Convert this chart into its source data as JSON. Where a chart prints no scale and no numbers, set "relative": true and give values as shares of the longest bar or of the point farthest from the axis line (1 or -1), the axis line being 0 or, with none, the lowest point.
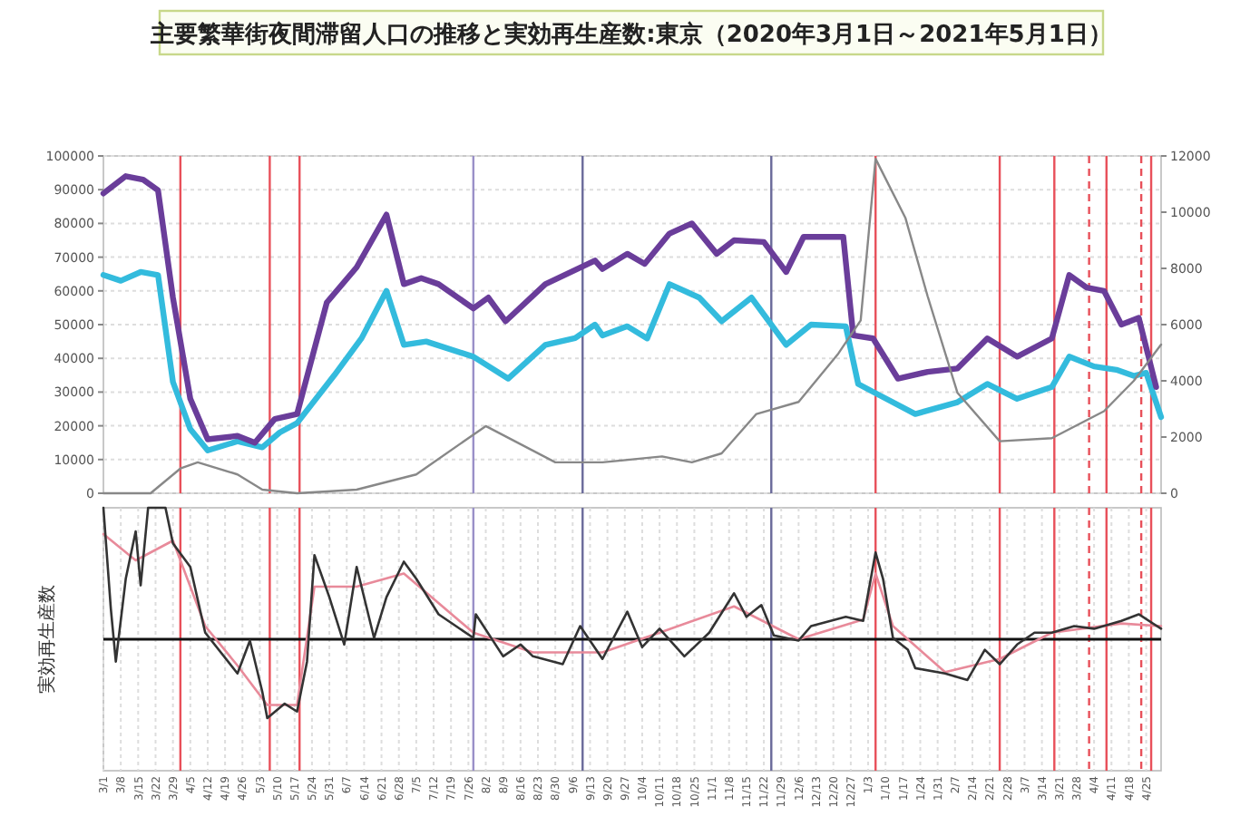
{
  "chart_data": [
    {
      "type": "line",
      "title": "主要繁華街夜間滞留人口の推移と実効再生産数:東京（2020年3月1日～2021年5月1日）",
      "xlim": [
        "2020-03-01",
        "2021-05-01"
      ],
      "ylim": [
        0,
        100000
      ],
      "yticks": [
        0,
        10000,
        20000,
        30000,
        40000,
        50000,
        60000,
        70000,
        80000,
        90000,
        100000
      ],
      "y2lim": [
        0,
        12000
      ],
      "y2ticks": [
        0,
        2000,
        4000,
        6000,
        8000,
        10000,
        12000
      ],
      "grid": "y",
      "tick_labels": "y",
      "series": [
        {
          "color": "#33bbdd",
          "x": [
            "2020-03-01",
            "2020-03-08",
            "2020-03-16",
            "2020-03-23",
            "2020-03-29",
            "2020-04-05",
            "2020-04-12",
            "2020-04-24",
            "2020-05-04",
            "2020-05-11",
            "2020-05-18",
            "2020-06-02",
            "2020-06-13",
            "2020-06-23",
            "2020-06-30",
            "2020-07-09",
            "2020-07-28",
            "2020-08-11",
            "2020-08-26",
            "2020-09-07",
            "2020-09-15",
            "2020-09-18",
            "2020-09-28",
            "2020-10-06",
            "2020-10-15",
            "2020-10-27",
            "2020-11-05",
            "2020-11-17",
            "2020-12-01",
            "2020-12-11",
            "2020-12-25",
            "2020-12-30",
            "2021-01-08",
            "2021-01-22",
            "2021-02-08",
            "2021-02-20",
            "2021-03-04",
            "2021-03-18",
            "2021-03-25",
            "2021-04-04",
            "2021-04-13",
            "2021-04-20",
            "2021-04-25",
            "2021-05-01"
          ],
          "values": [
            64700,
            63000,
            65600,
            64700,
            33000,
            19000,
            12700,
            15400,
            13600,
            18000,
            20800,
            35000,
            46000,
            60000,
            44000,
            45000,
            40500,
            34000,
            44000,
            46000,
            50000,
            46800,
            49500,
            45900,
            62000,
            58000,
            51000,
            58000,
            44000,
            50000,
            49500,
            32400,
            28900,
            23500,
            27000,
            32400,
            28000,
            31500,
            40500,
            37600,
            36600,
            34800,
            35700,
            22600
          ]
        },
        {
          "color": "#6a3d9a",
          "x": [
            "2020-03-01",
            "2020-03-10",
            "2020-03-17",
            "2020-03-23",
            "2020-03-29",
            "2020-04-05",
            "2020-04-12",
            "2020-04-24",
            "2020-05-01",
            "2020-05-09",
            "2020-05-18",
            "2020-05-30",
            "2020-06-11",
            "2020-06-23",
            "2020-06-30",
            "2020-07-07",
            "2020-07-14",
            "2020-07-28",
            "2020-08-03",
            "2020-08-10",
            "2020-08-26",
            "2020-09-15",
            "2020-09-18",
            "2020-09-28",
            "2020-10-05",
            "2020-10-15",
            "2020-10-24",
            "2020-11-03",
            "2020-11-10",
            "2020-11-22",
            "2020-12-01",
            "2020-12-08",
            "2020-12-24",
            "2020-12-28",
            "2021-01-05",
            "2021-01-15",
            "2021-01-27",
            "2021-02-08",
            "2021-02-20",
            "2021-03-04",
            "2021-03-18",
            "2021-03-25",
            "2021-04-01",
            "2021-04-08",
            "2021-04-15",
            "2021-04-22",
            "2021-04-29"
          ],
          "values": [
            88900,
            94000,
            93000,
            89800,
            58000,
            28000,
            16000,
            17000,
            15000,
            22000,
            23500,
            56600,
            67000,
            82600,
            62000,
            63800,
            62000,
            54800,
            58000,
            51000,
            62000,
            69000,
            66500,
            71000,
            68000,
            77000,
            80000,
            71000,
            75000,
            74500,
            65600,
            76000,
            76000,
            46800,
            45900,
            34000,
            36000,
            37000,
            45900,
            40500,
            45900,
            64700,
            61000,
            60000,
            50000,
            52000,
            31500
          ]
        },
        {
          "color": "#888888",
          "axis": "y2",
          "x": [
            "2020-03-01",
            "2020-03-20",
            "2020-04-01",
            "2020-04-08",
            "2020-04-24",
            "2020-05-04",
            "2020-05-18",
            "2020-06-11",
            "2020-07-05",
            "2020-08-02",
            "2020-08-30",
            "2020-09-18",
            "2020-10-12",
            "2020-10-24",
            "2020-11-05",
            "2020-11-19",
            "2020-12-06",
            "2020-12-22",
            "2020-12-31",
            "2021-01-06",
            "2021-01-18",
            "2021-01-27",
            "2021-02-08",
            "2021-02-25",
            "2021-03-18",
            "2021-04-08",
            "2021-04-20",
            "2021-05-01"
          ],
          "values": [
            0,
            0,
            880,
            1100,
            670,
            130,
            0,
            130,
            670,
            2390,
            1100,
            1100,
            1310,
            1100,
            1420,
            2820,
            3250,
            4970,
            6150,
            11900,
            9800,
            7000,
            3570,
            1850,
            1960,
            2920,
            4000,
            5290
          ]
        }
      ],
      "ref_lines": [
        {
          "axis": "x",
          "value": "2020-04-01",
          "color": "#e8505a"
        },
        {
          "axis": "x",
          "value": "2020-05-07",
          "color": "#e8505a"
        },
        {
          "axis": "x",
          "value": "2020-05-19",
          "color": "#e8505a"
        },
        {
          "axis": "x",
          "value": "2020-07-28",
          "color": "#9a90c8"
        },
        {
          "axis": "x",
          "value": "2020-09-10",
          "color": "#6a6a9a"
        },
        {
          "axis": "x",
          "value": "2020-11-25",
          "color": "#6a6a9a"
        },
        {
          "axis": "x",
          "value": "2021-01-06",
          "color": "#e8505a"
        },
        {
          "axis": "x",
          "value": "2021-02-25",
          "color": "#e8505a"
        },
        {
          "axis": "x",
          "value": "2021-03-19",
          "color": "#e8505a"
        },
        {
          "axis": "x",
          "value": "2021-04-02",
          "color": "#e8505a",
          "line_style": "dashed"
        },
        {
          "axis": "x",
          "value": "2021-04-09",
          "color": "#e8505a"
        },
        {
          "axis": "x",
          "value": "2021-04-23",
          "color": "#e8505a",
          "line_style": "dashed"
        },
        {
          "axis": "x",
          "value": "2021-04-27",
          "color": "#e8505a"
        }
      ]
    },
    {
      "type": "line",
      "ylabel": "実効再生産数",
      "relative": true,
      "xlim": [
        "2020-03-01",
        "2021-05-01"
      ],
      "tick_labels": "x",
      "grid": "x",
      "xticks": [
        {
          "value": "2020-03-01",
          "label": "3/1"
        },
        {
          "value": "2020-03-08",
          "label": "3/8"
        },
        {
          "value": "2020-03-15",
          "label": "3/15"
        },
        {
          "value": "2020-03-22",
          "label": "3/22"
        },
        {
          "value": "2020-03-29",
          "label": "3/29"
        },
        {
          "value": "2020-04-05",
          "label": "4/5"
        },
        {
          "value": "2020-04-12",
          "label": "4/12"
        },
        {
          "value": "2020-04-19",
          "label": "4/19"
        },
        {
          "value": "2020-04-26",
          "label": "4/26"
        },
        {
          "value": "2020-05-03",
          "label": "5/3"
        },
        {
          "value": "2020-05-10",
          "label": "5/10"
        },
        {
          "value": "2020-05-17",
          "label": "5/17"
        },
        {
          "value": "2020-05-24",
          "label": "5/24"
        },
        {
          "value": "2020-05-31",
          "label": "5/31"
        },
        {
          "value": "2020-06-07",
          "label": "6/7"
        },
        {
          "value": "2020-06-14",
          "label": "6/14"
        },
        {
          "value": "2020-06-21",
          "label": "6/21"
        },
        {
          "value": "2020-06-28",
          "label": "6/28"
        },
        {
          "value": "2020-07-05",
          "label": "7/5"
        },
        {
          "value": "2020-07-12",
          "label": "7/12"
        },
        {
          "value": "2020-07-19",
          "label": "7/19"
        },
        {
          "value": "2020-07-26",
          "label": "7/26"
        },
        {
          "value": "2020-08-02",
          "label": "8/2"
        },
        {
          "value": "2020-08-09",
          "label": "8/9"
        },
        {
          "value": "2020-08-16",
          "label": "8/16"
        },
        {
          "value": "2020-08-23",
          "label": "8/23"
        },
        {
          "value": "2020-08-30",
          "label": "8/30"
        },
        {
          "value": "2020-09-06",
          "label": "9/6"
        },
        {
          "value": "2020-09-13",
          "label": "9/13"
        },
        {
          "value": "2020-09-20",
          "label": "9/20"
        },
        {
          "value": "2020-09-27",
          "label": "9/27"
        },
        {
          "value": "2020-10-04",
          "label": "10/4"
        },
        {
          "value": "2020-10-11",
          "label": "10/11"
        },
        {
          "value": "2020-10-18",
          "label": "10/18"
        },
        {
          "value": "2020-10-25",
          "label": "10/25"
        },
        {
          "value": "2020-11-01",
          "label": "11/1"
        },
        {
          "value": "2020-11-08",
          "label": "11/8"
        },
        {
          "value": "2020-11-15",
          "label": "11/15"
        },
        {
          "value": "2020-11-22",
          "label": "11/22"
        },
        {
          "value": "2020-11-29",
          "label": "11/29"
        },
        {
          "value": "2020-12-06",
          "label": "12/6"
        },
        {
          "value": "2020-12-13",
          "label": "12/13"
        },
        {
          "value": "2020-12-20",
          "label": "12/20"
        },
        {
          "value": "2020-12-27",
          "label": "12/27"
        },
        {
          "value": "2021-01-03",
          "label": "1/3"
        },
        {
          "value": "2021-01-10",
          "label": "1/10"
        },
        {
          "value": "2021-01-17",
          "label": "1/17"
        },
        {
          "value": "2021-01-24",
          "label": "1/24"
        },
        {
          "value": "2021-01-31",
          "label": "1/31"
        },
        {
          "value": "2021-02-07",
          "label": "2/7"
        },
        {
          "value": "2021-02-14",
          "label": "2/14"
        },
        {
          "value": "2021-02-21",
          "label": "2/21"
        },
        {
          "value": "2021-02-28",
          "label": "2/28"
        },
        {
          "value": "2021-03-07",
          "label": "3/7"
        },
        {
          "value": "2021-03-14",
          "label": "3/14"
        },
        {
          "value": "2021-03-21",
          "label": "3/21"
        },
        {
          "value": "2021-03-28",
          "label": "3/28"
        },
        {
          "value": "2021-04-04",
          "label": "4/4"
        },
        {
          "value": "2021-04-11",
          "label": "4/11"
        },
        {
          "value": "2021-04-18",
          "label": "4/18"
        },
        {
          "value": "2021-04-25",
          "label": "4/25"
        }
      ],
      "series": [
        {
          "color": "#e88a9a",
          "x": [
            "2020-03-01",
            "2020-03-14",
            "2020-03-29",
            "2020-04-11",
            "2020-04-24",
            "2020-05-06",
            "2020-05-18",
            "2020-05-25",
            "2020-06-11",
            "2020-06-30",
            "2020-07-28",
            "2020-08-21",
            "2020-09-18",
            "2020-10-11",
            "2020-11-10",
            "2020-12-06",
            "2021-01-01",
            "2021-01-06",
            "2021-01-13",
            "2021-02-03",
            "2021-02-25",
            "2021-03-18",
            "2021-04-15",
            "2021-05-01"
          ],
          "values": [
            0.8,
            0.6,
            0.75,
            0.1,
            -0.2,
            -0.5,
            -0.5,
            0.4,
            0.4,
            0.5,
            0.05,
            -0.1,
            -0.1,
            0.05,
            0.25,
            0,
            0.15,
            0.5,
            0.1,
            -0.25,
            -0.15,
            0.05,
            0.12,
            0.1
          ]
        },
        {
          "color": "#333333",
          "x": [
            "2020-03-01",
            "2020-03-04",
            "2020-03-06",
            "2020-03-10",
            "2020-03-14",
            "2020-03-16",
            "2020-03-19",
            "2020-03-26",
            "2020-03-29",
            "2020-04-05",
            "2020-04-11",
            "2020-04-24",
            "2020-04-29",
            "2020-05-04",
            "2020-05-06",
            "2020-05-13",
            "2020-05-18",
            "2020-05-22",
            "2020-05-25",
            "2020-05-31",
            "2020-06-06",
            "2020-06-11",
            "2020-06-18",
            "2020-06-23",
            "2020-06-30",
            "2020-07-05",
            "2020-07-14",
            "2020-07-28",
            "2020-07-29",
            "2020-08-09",
            "2020-08-16",
            "2020-08-21",
            "2020-09-02",
            "2020-09-09",
            "2020-09-18",
            "2020-09-28",
            "2020-10-04",
            "2020-10-11",
            "2020-10-21",
            "2020-10-31",
            "2020-11-10",
            "2020-11-15",
            "2020-11-21",
            "2020-11-26",
            "2020-12-06",
            "2020-12-11",
            "2020-12-25",
            "2021-01-01",
            "2021-01-06",
            "2021-01-09",
            "2021-01-13",
            "2021-01-19",
            "2021-01-22",
            "2021-02-03",
            "2021-02-12",
            "2021-02-19",
            "2021-02-25",
            "2021-03-04",
            "2021-03-11",
            "2021-03-18",
            "2021-03-27",
            "2021-04-04",
            "2021-04-15",
            "2021-04-22",
            "2021-05-01"
          ],
          "values": [
            1.0,
            0.23,
            -0.17,
            0.46,
            0.82,
            0.41,
            1.0,
            1.0,
            0.73,
            0.55,
            0.05,
            -0.26,
            -0.01,
            -0.4,
            -0.6,
            -0.49,
            -0.55,
            -0.17,
            0.64,
            0.32,
            -0.04,
            0.55,
            0.01,
            0.32,
            0.59,
            0.46,
            0.19,
            0.01,
            0.19,
            -0.13,
            -0.04,
            -0.13,
            -0.19,
            0.1,
            -0.15,
            0.21,
            -0.06,
            0.08,
            -0.13,
            0.05,
            0.35,
            0.17,
            0.26,
            0.03,
            -0.01,
            0.1,
            0.17,
            0.14,
            0.66,
            0.46,
            0.01,
            -0.08,
            -0.22,
            -0.26,
            -0.31,
            -0.08,
            -0.19,
            -0.04,
            0.05,
            0.05,
            0.1,
            0.08,
            0.14,
            0.19,
            0.08
          ]
        }
      ],
      "ref_lines": [
        {
          "axis": "x",
          "value": "2020-04-01",
          "color": "#e8505a"
        },
        {
          "axis": "x",
          "value": "2020-05-07",
          "color": "#e8505a"
        },
        {
          "axis": "x",
          "value": "2020-05-19",
          "color": "#e8505a"
        },
        {
          "axis": "x",
          "value": "2020-07-28",
          "color": "#9a90c8"
        },
        {
          "axis": "x",
          "value": "2020-09-10",
          "color": "#6a6a9a"
        },
        {
          "axis": "x",
          "value": "2020-11-25",
          "color": "#6a6a9a"
        },
        {
          "axis": "x",
          "value": "2021-01-06",
          "color": "#e8505a"
        },
        {
          "axis": "x",
          "value": "2021-02-25",
          "color": "#e8505a"
        },
        {
          "axis": "x",
          "value": "2021-03-19",
          "color": "#e8505a"
        },
        {
          "axis": "x",
          "value": "2021-04-02",
          "color": "#e8505a",
          "line_style": "dashed"
        },
        {
          "axis": "x",
          "value": "2021-04-09",
          "color": "#e8505a"
        },
        {
          "axis": "x",
          "value": "2021-04-23",
          "color": "#e8505a",
          "line_style": "dashed"
        },
        {
          "axis": "x",
          "value": "2021-04-27",
          "color": "#e8505a"
        }
      ]
    }
  ]
}
